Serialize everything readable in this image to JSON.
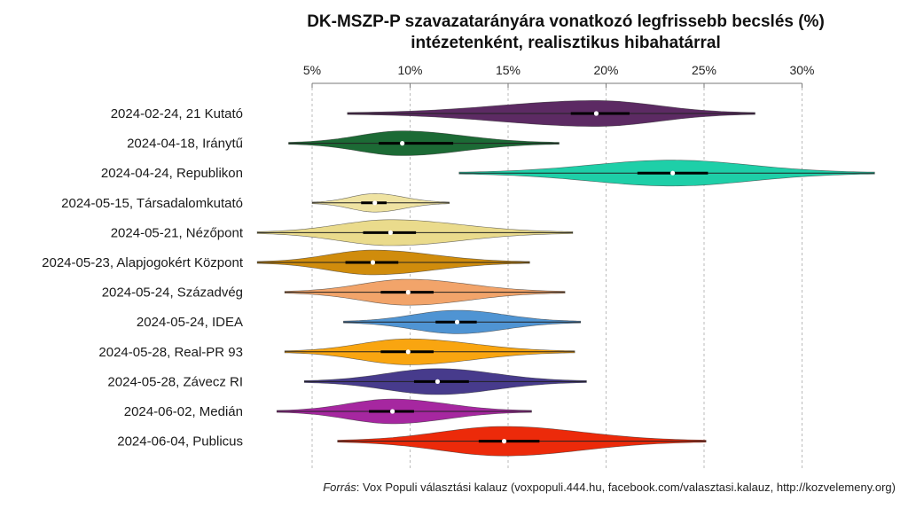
{
  "chart_data": {
    "type": "violin",
    "title": "DK-MSZP-P szavazatarányára vonatkozó legfrissebb becslés (%)",
    "subtitle": "intézetenként, realisztikus hibahatárral",
    "xlabel": "",
    "ylabel": "",
    "xlim": [
      0,
      36
    ],
    "x_ticks": [
      5,
      10,
      15,
      20,
      25,
      30
    ],
    "x_tick_labels": [
      "5%",
      "10%",
      "15%",
      "20%",
      "25%",
      "30%"
    ],
    "x_axis_position": "top",
    "grid": "vertical dotted",
    "source_prefix": "Forrás",
    "source_text": ": Vox Populi választási kalauz (voxpopuli.444.hu, facebook.com/valasztasi.kalauz, http://kozvelemeny.org)",
    "series": [
      {
        "label": "2024-02-24, 21 Kutató",
        "color": "#5c2a63",
        "min": 6.8,
        "q1": 18.2,
        "median": 19.5,
        "q3": 21.2,
        "max": 27.6,
        "spread": 1.0
      },
      {
        "label": "2024-04-18, Iránytű",
        "color": "#1c6a35",
        "min": 3.8,
        "q1": 8.4,
        "median": 9.6,
        "q3": 12.2,
        "max": 17.6,
        "spread": 0.95
      },
      {
        "label": "2024-04-24, Republikon",
        "color": "#1ecfa8",
        "min": 12.5,
        "q1": 21.6,
        "median": 23.4,
        "q3": 25.2,
        "max": 33.7,
        "spread": 1.0
      },
      {
        "label": "2024-05-15, Társadalomkutató",
        "color": "#efe3a2",
        "min": 5.0,
        "q1": 7.5,
        "median": 8.2,
        "q3": 8.8,
        "max": 12.0,
        "spread": 0.7
      },
      {
        "label": "2024-05-21, Nézőpont",
        "color": "#eadb8c",
        "min": 2.2,
        "q1": 7.6,
        "median": 9.0,
        "q3": 10.3,
        "max": 18.3,
        "spread": 1.0
      },
      {
        "label": "2024-05-23, Alapjogokért Központ",
        "color": "#d08c0c",
        "min": 2.2,
        "q1": 6.7,
        "median": 8.1,
        "q3": 9.4,
        "max": 16.1,
        "spread": 0.95
      },
      {
        "label": "2024-05-24, Századvég",
        "color": "#f2a46a",
        "min": 3.6,
        "q1": 8.5,
        "median": 9.9,
        "q3": 11.2,
        "max": 17.9,
        "spread": 1.0
      },
      {
        "label": "2024-05-24, IDEA",
        "color": "#4f94d3",
        "min": 6.6,
        "q1": 11.3,
        "median": 12.4,
        "q3": 13.4,
        "max": 18.7,
        "spread": 0.9
      },
      {
        "label": "2024-05-28, Real-PR 93",
        "color": "#f9a510",
        "min": 3.6,
        "q1": 8.5,
        "median": 9.9,
        "q3": 11.2,
        "max": 18.4,
        "spread": 1.0
      },
      {
        "label": "2024-05-28, Závecz RI",
        "color": "#473b8c",
        "min": 4.6,
        "q1": 10.2,
        "median": 11.4,
        "q3": 13.0,
        "max": 19.0,
        "spread": 1.0
      },
      {
        "label": "2024-06-02, Medián",
        "color": "#a627a0",
        "min": 3.2,
        "q1": 7.9,
        "median": 9.1,
        "q3": 10.2,
        "max": 16.2,
        "spread": 0.95
      },
      {
        "label": "2024-06-04, Publicus",
        "color": "#ec2a0a",
        "min": 6.3,
        "q1": 13.5,
        "median": 14.8,
        "q3": 16.6,
        "max": 25.1,
        "spread": 1.2
      }
    ]
  }
}
